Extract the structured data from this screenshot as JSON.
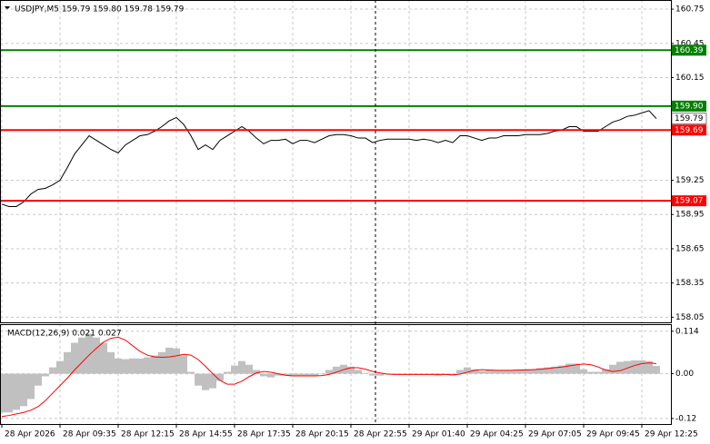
{
  "chart_data": [
    {
      "type": "line",
      "title": "USDJPY,M5  159.79 159.80 159.78 159.79",
      "categories": [
        "28 Apr 2026",
        null,
        null,
        null,
        null,
        null,
        null,
        null,
        "28 Apr 09:35",
        null,
        null,
        null,
        null,
        null,
        null,
        null,
        "28 Apr 12:15",
        null,
        null,
        null,
        null,
        null,
        null,
        null,
        "28 Apr 14:55",
        null,
        null,
        null,
        null,
        null,
        null,
        null,
        "28 Apr 17:35",
        null,
        null,
        null,
        null,
        null,
        null,
        null,
        "28 Apr 20:15",
        null,
        null,
        null,
        null,
        null,
        null,
        null,
        "28 Apr 22:55",
        null,
        null,
        null,
        null,
        null,
        null,
        null,
        "29 Apr 01:40",
        null,
        null,
        null,
        null,
        null,
        null,
        null,
        "29 Apr 04:25",
        null,
        null,
        null,
        null,
        null,
        null,
        null,
        "29 Apr 07:05",
        null,
        null,
        null,
        null,
        null,
        null,
        null,
        "29 Apr 09:45",
        null,
        null,
        null,
        null,
        null,
        null,
        null,
        "29 Apr 12:25",
        null,
        null
      ],
      "series": [
        {
          "color": "#000000",
          "values": [
            159.04,
            159.02,
            159.02,
            159.06,
            159.13,
            159.17,
            159.18,
            159.21,
            159.25,
            159.36,
            159.48,
            159.56,
            159.64,
            159.6,
            159.56,
            159.52,
            159.49,
            159.56,
            159.6,
            159.64,
            159.65,
            159.68,
            159.72,
            159.77,
            159.8,
            159.74,
            159.64,
            159.52,
            159.56,
            159.52,
            159.6,
            159.64,
            159.68,
            159.72,
            159.68,
            159.62,
            159.57,
            159.6,
            159.6,
            159.61,
            159.57,
            159.6,
            159.6,
            159.58,
            159.61,
            159.64,
            159.65,
            159.65,
            159.64,
            159.62,
            159.62,
            159.58,
            159.6,
            159.61,
            159.61,
            159.61,
            159.61,
            159.6,
            159.61,
            159.6,
            159.58,
            159.6,
            159.58,
            159.64,
            159.64,
            159.62,
            159.6,
            159.62,
            159.62,
            159.64,
            159.64,
            159.64,
            159.65,
            159.65,
            159.65,
            159.66,
            159.68,
            159.69,
            159.72,
            159.72,
            159.68,
            159.68,
            159.68,
            159.72,
            159.76,
            159.78,
            159.81,
            159.82,
            159.84,
            159.86,
            159.79
          ]
        }
      ],
      "levels": [
        {
          "value": 160.39,
          "color": "#008000"
        },
        {
          "value": 159.9,
          "label": "159.90",
          "color": "#008000"
        },
        {
          "value": 159.69,
          "color": "#ff0000"
        },
        {
          "value": 159.07,
          "color": "#ff0000"
        }
      ],
      "ylim": [
        158.005,
        160.83
      ],
      "yticks": [
        160.75,
        160.45,
        160.15,
        159.25,
        158.95,
        158.65,
        158.35,
        158.05
      ],
      "grid": true
    },
    {
      "type": "macd",
      "title": "MACD(12,26,9) 0.021 0.027",
      "series": [
        {
          "color": "#c0c0c0",
          "values": [
            -0.104,
            -0.104,
            -0.097,
            -0.087,
            -0.068,
            -0.032,
            -0.007,
            0.017,
            0.034,
            0.058,
            0.083,
            0.097,
            0.107,
            0.097,
            0.083,
            0.058,
            0.041,
            0.039,
            0.041,
            0.041,
            0.044,
            0.049,
            0.058,
            0.07,
            0.068,
            0.049,
            0.005,
            -0.032,
            -0.044,
            -0.039,
            -0.019,
            0.005,
            0.022,
            0.034,
            0.024,
            0.01,
            -0.007,
            -0.01,
            -0.005,
            -0.005,
            -0.007,
            -0.005,
            -0.005,
            -0.007,
            0,
            0.01,
            0.019,
            0.024,
            0.019,
            0.01,
            0.002,
            -0.005,
            -0.005,
            -0.002,
            0,
            0,
            0,
            -0.002,
            0,
            -0.002,
            -0.005,
            -0.002,
            -0.005,
            0.01,
            0.017,
            0.012,
            0.007,
            0.01,
            0.01,
            0.01,
            0.01,
            0.01,
            0.012,
            0.012,
            0.015,
            0.017,
            0.019,
            0.022,
            0.027,
            0.027,
            0.012,
            0.005,
            0.005,
            0.012,
            0.024,
            0.032,
            0.034,
            0.036,
            0.036,
            0.034,
            0.021
          ]
        },
        {
          "color": "#ff0000",
          "values": [
            -0.115,
            -0.112,
            -0.108,
            -0.104,
            -0.098,
            -0.088,
            -0.072,
            -0.052,
            -0.032,
            -0.012,
            0.01,
            0.03,
            0.05,
            0.068,
            0.085,
            0.095,
            0.098,
            0.09,
            0.075,
            0.06,
            0.05,
            0.045,
            0.044,
            0.045,
            0.048,
            0.052,
            0.05,
            0.038,
            0.02,
            0.0,
            -0.018,
            -0.028,
            -0.028,
            -0.02,
            -0.008,
            0.002,
            0.006,
            0.004,
            0.0,
            -0.004,
            -0.006,
            -0.006,
            -0.006,
            -0.006,
            -0.005,
            -0.002,
            0.004,
            0.011,
            0.016,
            0.016,
            0.012,
            0.006,
            0.002,
            -0.001,
            -0.002,
            -0.002,
            -0.002,
            -0.002,
            -0.002,
            -0.002,
            -0.002,
            -0.002,
            -0.003,
            -0.001,
            0.004,
            0.009,
            0.011,
            0.01,
            0.009,
            0.009,
            0.009,
            0.01,
            0.01,
            0.011,
            0.012,
            0.014,
            0.016,
            0.018,
            0.021,
            0.024,
            0.026,
            0.024,
            0.018,
            0.01,
            0.006,
            0.008,
            0.015,
            0.022,
            0.027,
            0.029,
            0.027
          ]
        }
      ],
      "ylim": [
        -0.135,
        0.133
      ],
      "yticks": [
        0.114,
        {
          "value": 0,
          "label": "0.00"
        },
        -0.12
      ],
      "grid": true
    }
  ]
}
